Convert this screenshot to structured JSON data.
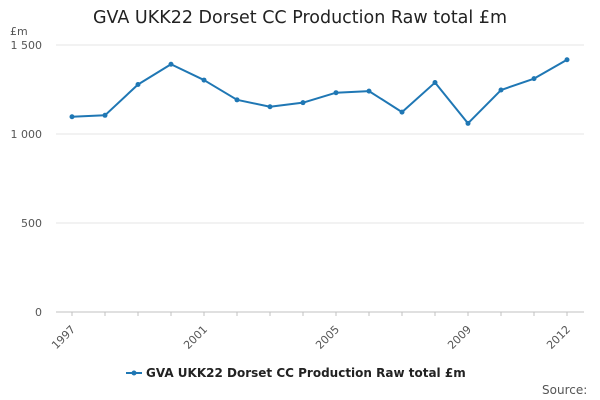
{
  "title": "GVA UKK22 Dorset CC Production Raw total £m",
  "y_unit": "£m",
  "source_label": "Source:",
  "colors": {
    "series": "#1f77b4",
    "grid": "#e6e6e6",
    "axis": "#c0c0c0",
    "tick_text": "#555555"
  },
  "chart_data": {
    "type": "line",
    "title": "GVA UKK22 Dorset CC Production Raw total £m",
    "xlabel": "",
    "ylabel": "£m",
    "x": [
      1997,
      1998,
      1999,
      2000,
      2001,
      2002,
      2003,
      2004,
      2005,
      2006,
      2007,
      2008,
      2009,
      2010,
      2011,
      2012
    ],
    "x_ticks": [
      "1997",
      "2001",
      "2005",
      "2009",
      "2012"
    ],
    "y_ticks": [
      "0",
      "500",
      "1 000",
      "1 500"
    ],
    "ylim": [
      0,
      1500
    ],
    "grid": true,
    "legend_position": "bottom",
    "series": [
      {
        "name": "GVA UKK22 Dorset CC Production Raw total £m",
        "values": [
          1097,
          1105,
          1278,
          1392,
          1303,
          1192,
          1153,
          1176,
          1232,
          1241,
          1123,
          1289,
          1060,
          1247,
          1311,
          1417
        ]
      }
    ]
  }
}
